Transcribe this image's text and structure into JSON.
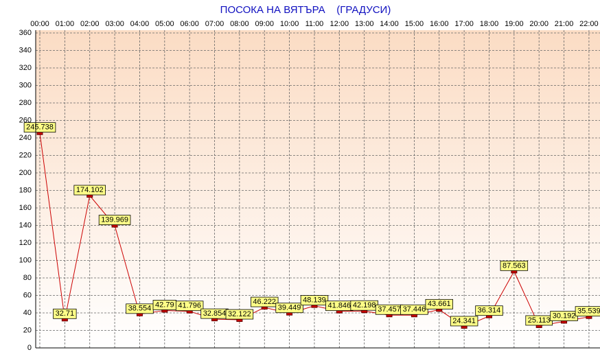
{
  "chart_data": {
    "type": "line",
    "title": "ПОСОКА НА ВЯТЪРА    (ГРАДУСИ)",
    "categories": [
      "00:00",
      "01:00",
      "02:00",
      "03:00",
      "04:00",
      "05:00",
      "06:00",
      "07:00",
      "08:00",
      "09:00",
      "10:00",
      "11:00",
      "12:00",
      "13:00",
      "14:00",
      "15:00",
      "16:00",
      "17:00",
      "18:00",
      "19:00",
      "20:00",
      "21:00",
      "22:00"
    ],
    "values": [
      245.738,
      32.71,
      174.102,
      139.969,
      38.554,
      42.79,
      41.796,
      32.854,
      32.122,
      46.222,
      39.449,
      48.139,
      41.846,
      42.198,
      37.457,
      37.446,
      43.661,
      24.341,
      36.314,
      87.563,
      25.113,
      30.192,
      35.539
    ],
    "color": "#cc0000",
    "ylim": [
      0,
      360
    ],
    "yticks": [
      0,
      20,
      40,
      60,
      80,
      100,
      120,
      140,
      160,
      180,
      200,
      220,
      240,
      260,
      280,
      300,
      320,
      340,
      360
    ],
    "grid": true
  }
}
